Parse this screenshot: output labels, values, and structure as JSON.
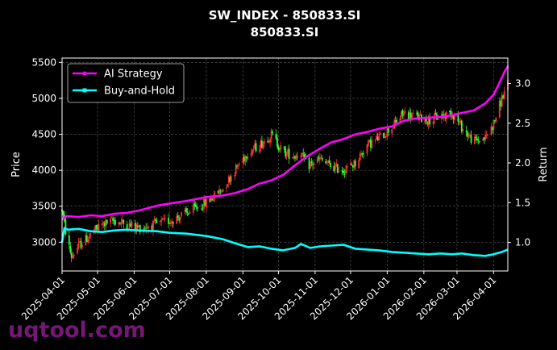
{
  "title_line1": "SW_INDEX - 850833.SI",
  "title_line2": "850833.SI",
  "watermark": "uqtool.com",
  "colors": {
    "background": "#000000",
    "ai_strategy": "#ff00ff",
    "buy_and_hold": "#00ffff",
    "candle_up": "#ff3333",
    "candle_down": "#33ff33",
    "grid": "#555555"
  },
  "chart_data": {
    "type": "line",
    "subtype": "candlestick-with-return-overlay",
    "ylabel": "Price",
    "y2label": "Return",
    "ylim": [
      2600,
      5560
    ],
    "y2lim": [
      0.64,
      3.32
    ],
    "yticks": [
      "3000",
      "3500",
      "4000",
      "4500",
      "5000",
      "5500"
    ],
    "y2ticks": [
      "1.0",
      "1.5",
      "2.0",
      "2.5",
      "3.0"
    ],
    "xlim": [
      "2025-04-01",
      "2026-04-13"
    ],
    "xticks": [
      "2025-04-01",
      "2025-05-01",
      "2025-06-01",
      "2025-07-01",
      "2025-08-01",
      "2025-09-01",
      "2025-10-01",
      "2025-11-01",
      "2025-12-01",
      "2026-01-01",
      "2026-02-01",
      "2026-03-01",
      "2026-04-01"
    ],
    "grid": true,
    "legend_position": "top-left",
    "series": [
      {
        "name": "AI Strategy",
        "axis": "right",
        "points": [
          [
            "2025-04-01",
            1.29
          ],
          [
            "2025-04-05",
            1.33
          ],
          [
            "2025-04-15",
            1.32
          ],
          [
            "2025-04-25",
            1.34
          ],
          [
            "2025-05-05",
            1.33
          ],
          [
            "2025-05-15",
            1.36
          ],
          [
            "2025-05-25",
            1.37
          ],
          [
            "2025-06-05",
            1.4
          ],
          [
            "2025-06-20",
            1.46
          ],
          [
            "2025-07-01",
            1.49
          ],
          [
            "2025-07-15",
            1.52
          ],
          [
            "2025-08-01",
            1.57
          ],
          [
            "2025-08-15",
            1.59
          ],
          [
            "2025-08-25",
            1.62
          ],
          [
            "2025-09-05",
            1.67
          ],
          [
            "2025-09-15",
            1.74
          ],
          [
            "2025-09-25",
            1.78
          ],
          [
            "2025-10-05",
            1.85
          ],
          [
            "2025-10-15",
            1.97
          ],
          [
            "2025-10-25",
            2.08
          ],
          [
            "2025-11-05",
            2.18
          ],
          [
            "2025-11-15",
            2.26
          ],
          [
            "2025-11-25",
            2.3
          ],
          [
            "2025-12-05",
            2.36
          ],
          [
            "2025-12-15",
            2.39
          ],
          [
            "2025-12-25",
            2.43
          ],
          [
            "2026-01-05",
            2.46
          ],
          [
            "2026-01-15",
            2.53
          ],
          [
            "2026-01-25",
            2.56
          ],
          [
            "2026-02-05",
            2.57
          ],
          [
            "2026-02-15",
            2.58
          ],
          [
            "2026-02-25",
            2.6
          ],
          [
            "2026-03-05",
            2.63
          ],
          [
            "2026-03-15",
            2.66
          ],
          [
            "2026-03-25",
            2.75
          ],
          [
            "2026-04-01",
            2.86
          ],
          [
            "2026-04-05",
            2.98
          ],
          [
            "2026-04-10",
            3.14
          ],
          [
            "2026-04-13",
            3.22
          ]
        ]
      },
      {
        "name": "Buy-and-Hold",
        "axis": "right",
        "points": [
          [
            "2025-04-01",
            1.0
          ],
          [
            "2025-04-03",
            1.18
          ],
          [
            "2025-04-06",
            1.16
          ],
          [
            "2025-04-15",
            1.17
          ],
          [
            "2025-04-25",
            1.14
          ],
          [
            "2025-05-05",
            1.13
          ],
          [
            "2025-05-15",
            1.15
          ],
          [
            "2025-05-25",
            1.16
          ],
          [
            "2025-06-05",
            1.15
          ],
          [
            "2025-06-20",
            1.14
          ],
          [
            "2025-07-01",
            1.12
          ],
          [
            "2025-07-15",
            1.11
          ],
          [
            "2025-08-01",
            1.08
          ],
          [
            "2025-08-15",
            1.04
          ],
          [
            "2025-08-25",
            0.99
          ],
          [
            "2025-09-05",
            0.94
          ],
          [
            "2025-09-15",
            0.95
          ],
          [
            "2025-09-25",
            0.92
          ],
          [
            "2025-10-05",
            0.9
          ],
          [
            "2025-10-15",
            0.93
          ],
          [
            "2025-10-20",
            0.98
          ],
          [
            "2025-10-28",
            0.93
          ],
          [
            "2025-11-05",
            0.95
          ],
          [
            "2025-11-15",
            0.96
          ],
          [
            "2025-11-25",
            0.97
          ],
          [
            "2025-12-05",
            0.92
          ],
          [
            "2025-12-15",
            0.91
          ],
          [
            "2025-12-25",
            0.9
          ],
          [
            "2026-01-05",
            0.88
          ],
          [
            "2026-01-15",
            0.87
          ],
          [
            "2026-01-25",
            0.86
          ],
          [
            "2026-02-05",
            0.85
          ],
          [
            "2026-02-15",
            0.86
          ],
          [
            "2026-02-25",
            0.85
          ],
          [
            "2026-03-05",
            0.86
          ],
          [
            "2026-03-15",
            0.84
          ],
          [
            "2026-03-25",
            0.83
          ],
          [
            "2026-04-01",
            0.85
          ],
          [
            "2026-04-08",
            0.88
          ],
          [
            "2026-04-13",
            0.91
          ]
        ]
      }
    ],
    "price_path": [
      [
        "2025-04-01",
        3450
      ],
      [
        "2025-04-05",
        3050
      ],
      [
        "2025-04-09",
        2800
      ],
      [
        "2025-04-15",
        2950
      ],
      [
        "2025-04-25",
        3100
      ],
      [
        "2025-05-05",
        3250
      ],
      [
        "2025-05-15",
        3300
      ],
      [
        "2025-05-25",
        3250
      ],
      [
        "2025-06-05",
        3200
      ],
      [
        "2025-06-20",
        3250
      ],
      [
        "2025-07-01",
        3300
      ],
      [
        "2025-07-15",
        3400
      ],
      [
        "2025-08-01",
        3550
      ],
      [
        "2025-08-15",
        3750
      ],
      [
        "2025-08-25",
        4000
      ],
      [
        "2025-09-05",
        4250
      ],
      [
        "2025-09-15",
        4350
      ],
      [
        "2025-09-25",
        4500
      ],
      [
        "2025-10-05",
        4250
      ],
      [
        "2025-10-15",
        4200
      ],
      [
        "2025-10-20",
        4250
      ],
      [
        "2025-10-25",
        4050
      ],
      [
        "2025-11-05",
        4150
      ],
      [
        "2025-11-15",
        4050
      ],
      [
        "2025-11-25",
        4000
      ],
      [
        "2025-12-05",
        4100
      ],
      [
        "2025-12-15",
        4350
      ],
      [
        "2025-12-25",
        4450
      ],
      [
        "2026-01-05",
        4600
      ],
      [
        "2026-01-15",
        4800
      ],
      [
        "2026-01-25",
        4750
      ],
      [
        "2026-02-05",
        4700
      ],
      [
        "2026-02-15",
        4750
      ],
      [
        "2026-02-25",
        4800
      ],
      [
        "2026-03-05",
        4600
      ],
      [
        "2026-03-15",
        4400
      ],
      [
        "2026-03-25",
        4450
      ],
      [
        "2026-04-01",
        4650
      ],
      [
        "2026-04-08",
        5000
      ],
      [
        "2026-04-13",
        5200
      ]
    ]
  },
  "legend": {
    "ai_label": "AI Strategy",
    "bh_label": "Buy-and-Hold"
  }
}
